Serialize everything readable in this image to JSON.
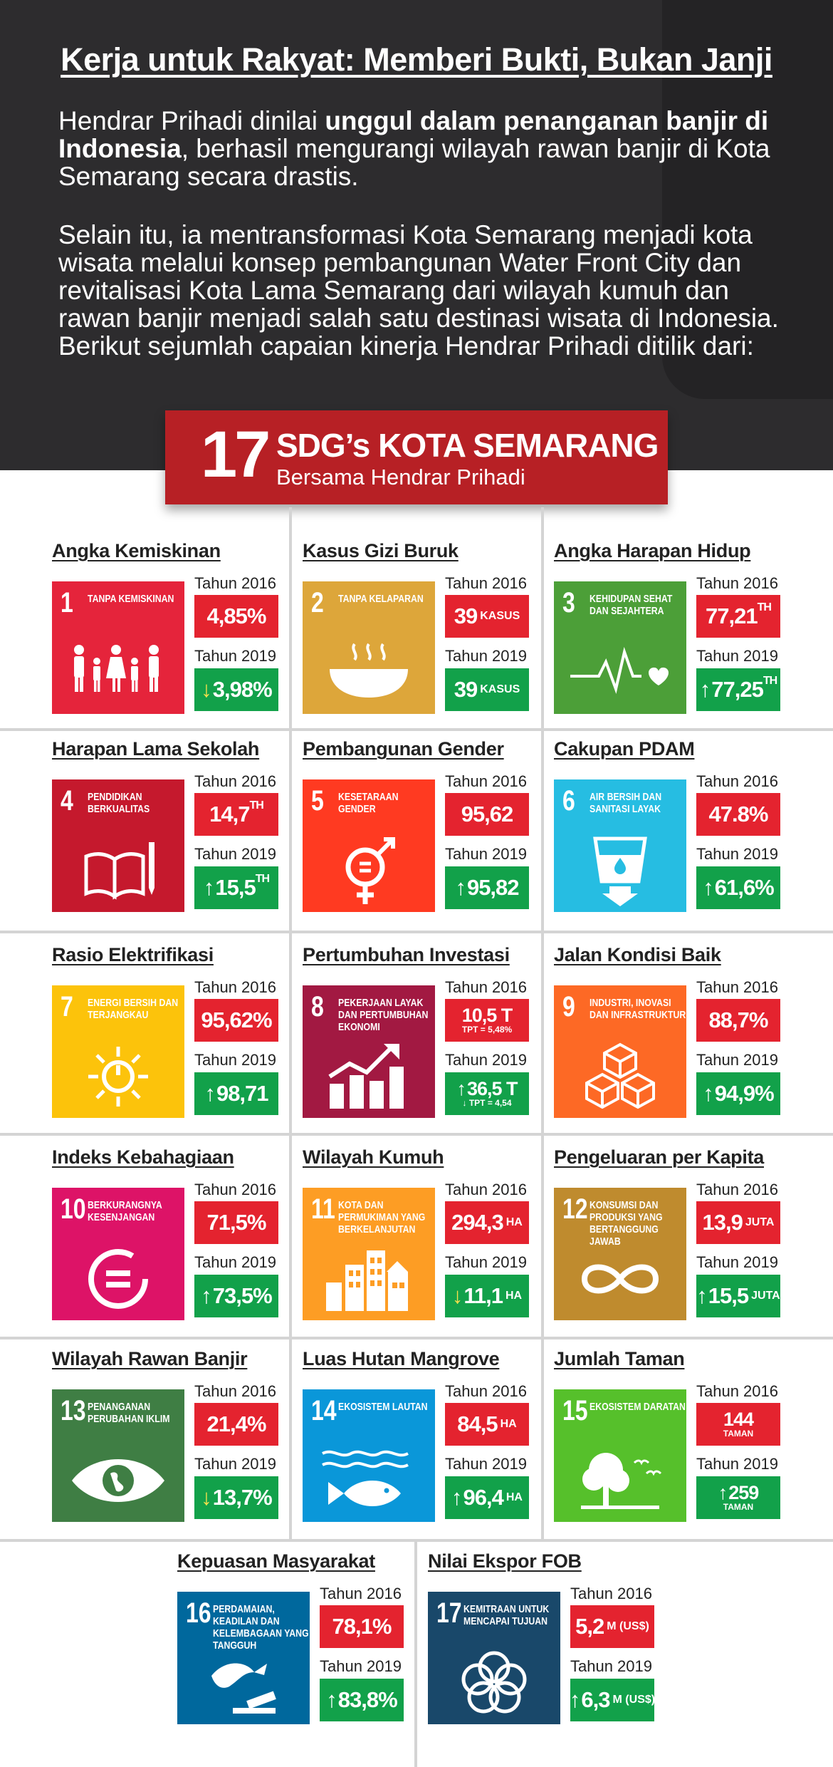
{
  "header": {
    "title": "Kerja untuk Rakyat: Memberi Bukti, Bukan Janji",
    "p1_a": "Hendrar Prihadi dinilai ",
    "p1_b": "unggul dalam penanganan  banjir di Indonesia",
    "p1_c": ", berhasil mengurangi wilayah  rawan banjir di Kota Semarang secara drastis.",
    "p2": "Selain itu, ia mentransformasi Kota Semarang menjadi kota wisata melalui konsep pembangunan Water Front City dan revitalisasi Kota Lama Semarang dari wilayah kumuh dan rawan banjir menjadi salah satu destinasi wisata di Indonesia.",
    "p3": "Berikut sejumlah capaian kinerja Hendrar Prihadi ditilik dari:"
  },
  "banner": {
    "number": "17",
    "title": "SDG’s KOTA SEMARANG",
    "subtitle": "Bersama Hendrar Prihadi"
  },
  "year_a": "Tahun 2016",
  "year_b": "Tahun 2019",
  "cards": [
    {
      "title": "Angka Kemiskinan",
      "num": "1",
      "label": "TANPA KEMISKINAN",
      "color": "#e5243b",
      "icon": "people-icon",
      "a_main": "4,85%",
      "a_unit": "",
      "a_sup": "",
      "b_arrow": "↓",
      "b_main": "3,98%",
      "b_unit": "",
      "b_sup": ""
    },
    {
      "title": "Kasus Gizi Buruk",
      "num": "2",
      "label": "TANPA KELAPARAN",
      "color": "#dda63a",
      "icon": "bowl-icon",
      "a_main": "39",
      "a_unit": "KASUS",
      "a_sup": "",
      "b_arrow": "",
      "b_main": "39",
      "b_unit": "KASUS",
      "b_sup": ""
    },
    {
      "title": "Angka Harapan Hidup",
      "num": "3",
      "label": "KEHIDUPAN SEHAT DAN SEJAHTERA",
      "color": "#4c9f38",
      "icon": "heartbeat-icon",
      "a_main": "77,21",
      "a_unit": "",
      "a_sup": "TH",
      "b_arrow": "↑",
      "b_main": "77,25",
      "b_unit": "",
      "b_sup": "TH"
    },
    {
      "title": "Harapan Lama Sekolah",
      "num": "4",
      "label": "PENDIDIKAN BERKUALITAS",
      "color": "#c5192d",
      "icon": "book-icon",
      "a_main": "14,7",
      "a_unit": "",
      "a_sup": "TH",
      "b_arrow": "↑",
      "b_main": "15,5",
      "b_unit": "",
      "b_sup": "TH"
    },
    {
      "title": "Pembangunan Gender",
      "num": "5",
      "label": "KESETARAAN GENDER",
      "color": "#ff3a21",
      "icon": "gender-icon",
      "a_main": "95,62",
      "a_unit": "",
      "a_sup": "",
      "b_arrow": "↑",
      "b_main": "95,82",
      "b_unit": "",
      "b_sup": ""
    },
    {
      "title": "Cakupan PDAM",
      "num": "6",
      "label": "AIR BERSIH DAN SANITASI LAYAK",
      "color": "#26bde2",
      "icon": "water-glass-icon",
      "a_main": "47.8%",
      "a_unit": "",
      "a_sup": "",
      "b_arrow": "↑",
      "b_main": "61,6%",
      "b_unit": "",
      "b_sup": ""
    },
    {
      "title": "Rasio Elektrifikasi",
      "num": "7",
      "label": "ENERGI BERSIH DAN TERJANGKAU",
      "color": "#fcc30b",
      "icon": "sun-power-icon",
      "a_main": "95,62%",
      "a_unit": "",
      "a_sup": "",
      "b_arrow": "↑",
      "b_main": "98,71",
      "b_unit": "",
      "b_sup": ""
    },
    {
      "title": "Pertumbuhan Investasi",
      "num": "8",
      "label": "PEKERJAAN LAYAK DAN PERTUMBUHAN EKONOMI",
      "color": "#a21942",
      "icon": "growth-chart-icon",
      "a_main": "10,5 T",
      "a_small": "TPT = 5,48%",
      "b_arrow": "↑",
      "b_main": "36,5 T",
      "b_small": "↓ TPT = 4,54"
    },
    {
      "title": "Jalan Kondisi Baik",
      "num": "9",
      "label": "INDUSTRI, INOVASI DAN INFRASTRUKTUR",
      "color": "#fd6925",
      "icon": "cubes-icon",
      "a_main": "88,7%",
      "a_unit": "",
      "a_sup": "",
      "b_arrow": "↑",
      "b_main": "94,9%",
      "b_unit": "",
      "b_sup": ""
    },
    {
      "title": "Indeks Kebahagiaan",
      "num": "10",
      "label": "BERKURANGNYA KESENJANGAN",
      "color": "#dd1367",
      "icon": "equality-icon",
      "a_main": "71,5%",
      "a_unit": "",
      "a_sup": "",
      "b_arrow": "↑",
      "b_main": "73,5%",
      "b_unit": "",
      "b_sup": ""
    },
    {
      "title": "Wilayah Kumuh",
      "num": "11",
      "label": "KOTA DAN PERMUKIMAN YANG BERKELANJUTAN",
      "color": "#fd9d24",
      "icon": "city-icon",
      "a_main": "294,3",
      "a_unit": "HA",
      "a_sup": "",
      "b_arrow": "↓",
      "b_main": "11,1",
      "b_unit": "HA",
      "b_sup": ""
    },
    {
      "title": "Pengeluaran per Kapita",
      "num": "12",
      "label": "KONSUMSI DAN PRODUKSI YANG BERTANGGUNG JAWAB",
      "color": "#bf8b2e",
      "icon": "infinity-icon",
      "a_main": "13,9",
      "a_unit": "JUTA",
      "a_sup": "",
      "b_arrow": "↑",
      "b_main": "15,5",
      "b_unit": "JUTA",
      "b_sup": ""
    },
    {
      "title": "Wilayah Rawan Banjir",
      "num": "13",
      "label": "PENANGANAN PERUBAHAN IKLIM",
      "color": "#3f7e44",
      "icon": "eye-globe-icon",
      "a_main": "21,4%",
      "a_unit": "",
      "a_sup": "",
      "b_arrow": "↓",
      "b_main": "13,7%",
      "b_unit": "",
      "b_sup": ""
    },
    {
      "title": "Luas Hutan Mangrove",
      "num": "14",
      "label": "EKOSISTEM LAUTAN",
      "color": "#0a97d9",
      "icon": "fish-icon",
      "a_main": "84,5",
      "a_unit": "HA",
      "a_sup": "",
      "b_arrow": "↑",
      "b_main": "96,4",
      "b_unit": "HA",
      "b_sup": ""
    },
    {
      "title": "Jumlah Taman",
      "num": "15",
      "label": "EKOSISTEM DARATAN",
      "color": "#56c02b",
      "icon": "tree-birds-icon",
      "a_main": "144",
      "a_unit2": "TAMAN",
      "b_arrow": "↑",
      "b_main": "259",
      "b_unit2": "TAMAN"
    },
    {
      "title": "Kepuasan Masyarakat",
      "num": "16",
      "label": "PERDAMAIAN, KEADILAN DAN KELEMBAGAAN YANG TANGGUH",
      "color": "#00689d",
      "icon": "dove-gavel-icon",
      "a_main": "78,1%",
      "a_unit": "",
      "a_sup": "",
      "b_arrow": "↑",
      "b_main": "83,8%",
      "b_unit": "",
      "b_sup": ""
    },
    {
      "title": "Nilai Ekspor FOB",
      "num": "17",
      "label": "KEMITRAAN UNTUK MENCAPAI TUJUAN",
      "color": "#19486a",
      "icon": "rings-icon",
      "a_main": "5,2",
      "a_unit": "M (US$)",
      "a_sup": "",
      "b_arrow": "↑",
      "b_main": "6,3",
      "b_unit": "M (US$)",
      "b_sup": ""
    }
  ]
}
